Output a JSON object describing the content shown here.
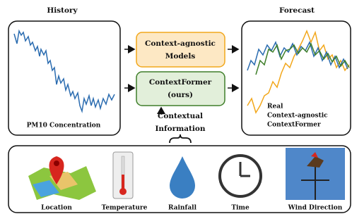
{
  "header": {
    "history": "History",
    "forecast": "Forecast"
  },
  "history_panel": {
    "label": "PM10 Concentration"
  },
  "models": [
    {
      "lines": [
        "Context-agnostic",
        "Models"
      ]
    },
    {
      "lines": [
        "ContextFormer",
        "(ours)"
      ]
    }
  ],
  "context": {
    "lines": [
      "Contextual",
      "Information"
    ]
  },
  "legend": [
    {
      "name": "Real",
      "color": "#2b6cb0"
    },
    {
      "name": "Context-agnostic",
      "color": "#f2a71b"
    },
    {
      "name": "ContextFormer",
      "color": "#3f7f2a"
    }
  ],
  "contexts": [
    {
      "label": "Location"
    },
    {
      "label": "Temperature"
    },
    {
      "label": "Rainfall"
    },
    {
      "label": "Time"
    },
    {
      "label": "Wind Direction"
    }
  ]
}
